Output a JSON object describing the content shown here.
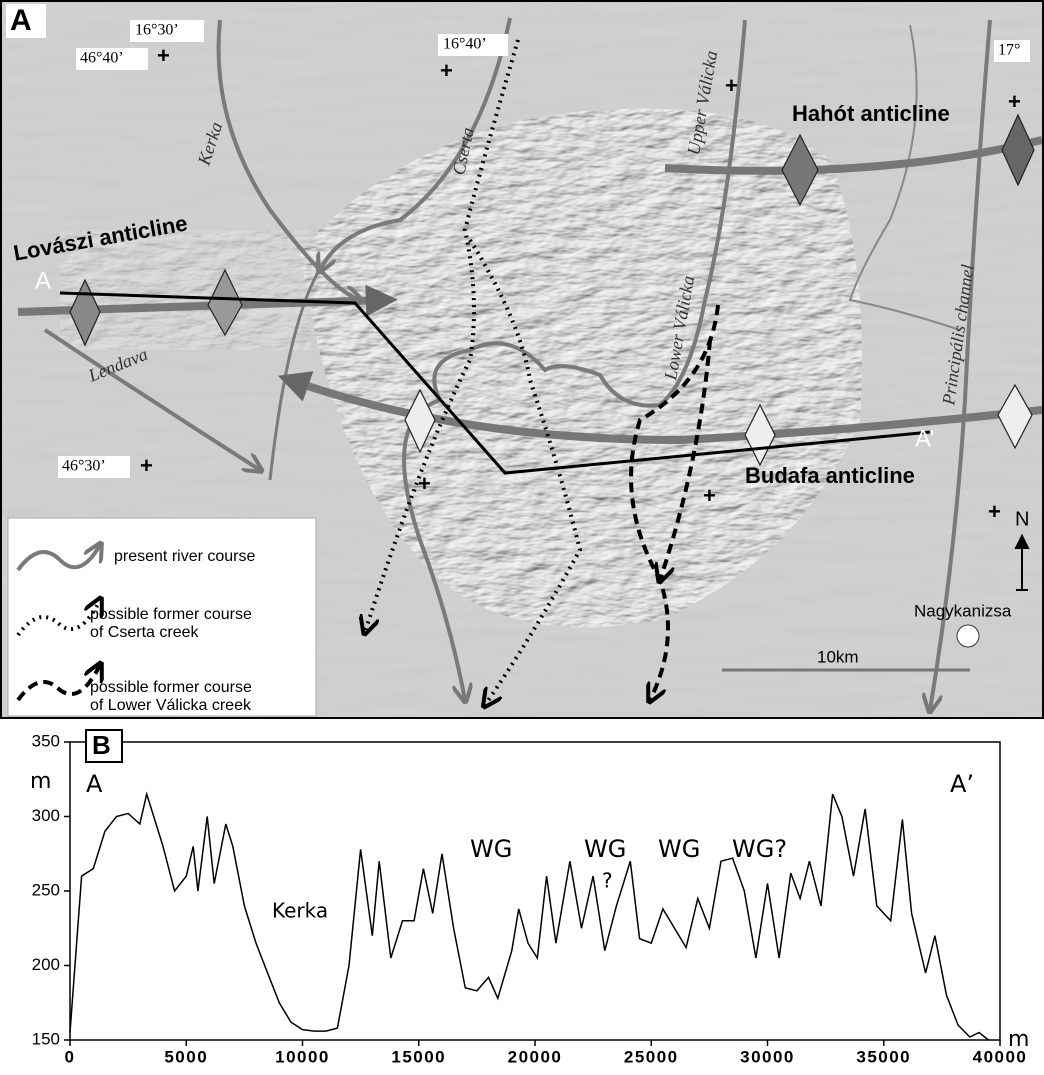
{
  "map": {
    "panel_label": "A",
    "coordinates": [
      "16°30’",
      "46°40’",
      "16°40’",
      "17°",
      "46°30’"
    ],
    "rivers": [
      "Kerka",
      "Cserta",
      "Upper Válicka",
      "Lower Válicka",
      "Lendava",
      "Principális channel"
    ],
    "anticlines": [
      "Lovászi anticline",
      "Hahót anticline",
      "Budafa anticline"
    ],
    "section_ends": [
      "A",
      "A’"
    ],
    "north": "N",
    "town": "Nagykanizsa",
    "scale": "10km",
    "legend": [
      [
        "present river course"
      ],
      [
        "possible former course",
        "of Cserta creek"
      ],
      [
        "possible former course",
        "of Lower Válicka creek"
      ]
    ]
  },
  "chart_data": {
    "type": "line",
    "panel_label": "B",
    "annotations": [
      "m",
      "A",
      "A’",
      "Kerka",
      "WG",
      "WG",
      "?",
      "WG",
      "WG?",
      "m"
    ],
    "x": [
      0,
      500,
      1000,
      1500,
      2000,
      2500,
      3000,
      3300,
      3500,
      4000,
      4500,
      5000,
      5300,
      5500,
      5900,
      6200,
      6700,
      7000,
      7500,
      8000,
      8500,
      9000,
      9500,
      10000,
      10500,
      11000,
      11500,
      12000,
      12500,
      13000,
      13300,
      13800,
      14300,
      14800,
      15200,
      15600,
      16000,
      16500,
      17000,
      17500,
      18000,
      18400,
      19000,
      19300,
      19700,
      20100,
      20500,
      20900,
      21500,
      22000,
      22500,
      23000,
      23500,
      24100,
      24500,
      25000,
      25500,
      26000,
      26500,
      27000,
      27500,
      28000,
      28500,
      29000,
      29500,
      30000,
      30500,
      31000,
      31400,
      31800,
      32300,
      32800,
      33200,
      33700,
      34200,
      34700,
      35300,
      35800,
      36200,
      36800,
      37200,
      37700,
      38200,
      38700,
      39100,
      39500
    ],
    "series": [
      {
        "color": "#000000",
        "values": [
          155,
          260,
          265,
          290,
          300,
          302,
          295,
          315,
          305,
          280,
          250,
          260,
          280,
          250,
          300,
          255,
          295,
          280,
          240,
          215,
          195,
          175,
          162,
          157,
          156,
          156,
          158,
          200,
          278,
          220,
          270,
          205,
          230,
          230,
          265,
          235,
          275,
          225,
          185,
          183,
          192,
          178,
          210,
          238,
          215,
          205,
          260,
          215,
          270,
          225,
          260,
          210,
          240,
          270,
          218,
          215,
          238,
          225,
          212,
          245,
          225,
          270,
          272,
          250,
          205,
          255,
          205,
          262,
          245,
          270,
          240,
          315,
          300,
          260,
          305,
          240,
          230,
          298,
          235,
          195,
          220,
          180,
          160,
          152,
          155,
          150
        ]
      }
    ],
    "xlim": [
      0,
      40000
    ],
    "ylim": [
      150,
      350
    ],
    "xticks": [
      0,
      5000,
      10000,
      15000,
      20000,
      25000,
      30000,
      35000,
      40000
    ],
    "yticks": [
      150,
      200,
      250,
      300,
      350
    ]
  }
}
